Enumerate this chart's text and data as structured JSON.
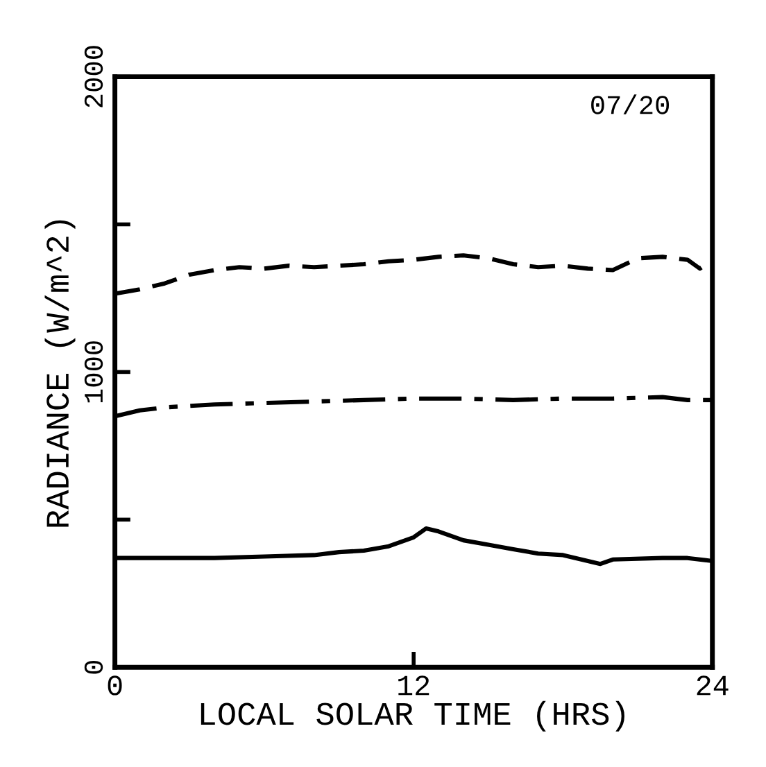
{
  "chart_data": {
    "type": "line",
    "xlabel": "LOCAL SOLAR TIME (HRS)",
    "ylabel": "RADIANCE (W/m^2)",
    "annotations": [
      "07/20"
    ],
    "xlim": [
      0,
      24
    ],
    "xticks": [
      0,
      12,
      24
    ],
    "ylim": [
      0,
      2000
    ],
    "yticks": [
      0,
      {
        "value": 500,
        "label": null
      },
      1000,
      {
        "value": 1500,
        "label": null
      },
      2000
    ],
    "grid": false,
    "legend": false,
    "series": [
      {
        "color": "#000000",
        "line_style": "dashed",
        "x": [
          0,
          1,
          2,
          3,
          4,
          5,
          6,
          7,
          8,
          9,
          10,
          11,
          12,
          13,
          14,
          15,
          16,
          17,
          18,
          19,
          20,
          21,
          22,
          23,
          23.5,
          24
        ],
        "values": [
          1265,
          1280,
          1300,
          1330,
          1345,
          1355,
          1350,
          1360,
          1355,
          1360,
          1365,
          1375,
          1380,
          1390,
          1395,
          1385,
          1365,
          1355,
          1360,
          1350,
          1345,
          1385,
          1390,
          1380,
          1350,
          1380
        ]
      },
      {
        "color": "#000000",
        "line_style": "dashdot",
        "x": [
          0,
          1,
          2,
          4,
          6,
          8,
          10,
          12,
          14,
          16,
          18,
          20,
          22,
          23,
          24
        ],
        "values": [
          850,
          870,
          880,
          890,
          895,
          900,
          905,
          910,
          910,
          905,
          910,
          910,
          915,
          905,
          905
        ]
      },
      {
        "color": "#000000",
        "line_style": "solid",
        "x": [
          0,
          2,
          4,
          6,
          8,
          9,
          10,
          11,
          12,
          12.5,
          13,
          14,
          15,
          16,
          17,
          18,
          19,
          19.5,
          20,
          22,
          23,
          24
        ],
        "values": [
          370,
          370,
          370,
          375,
          380,
          390,
          395,
          410,
          440,
          470,
          460,
          430,
          415,
          400,
          385,
          380,
          360,
          350,
          365,
          370,
          370,
          360
        ]
      }
    ]
  }
}
